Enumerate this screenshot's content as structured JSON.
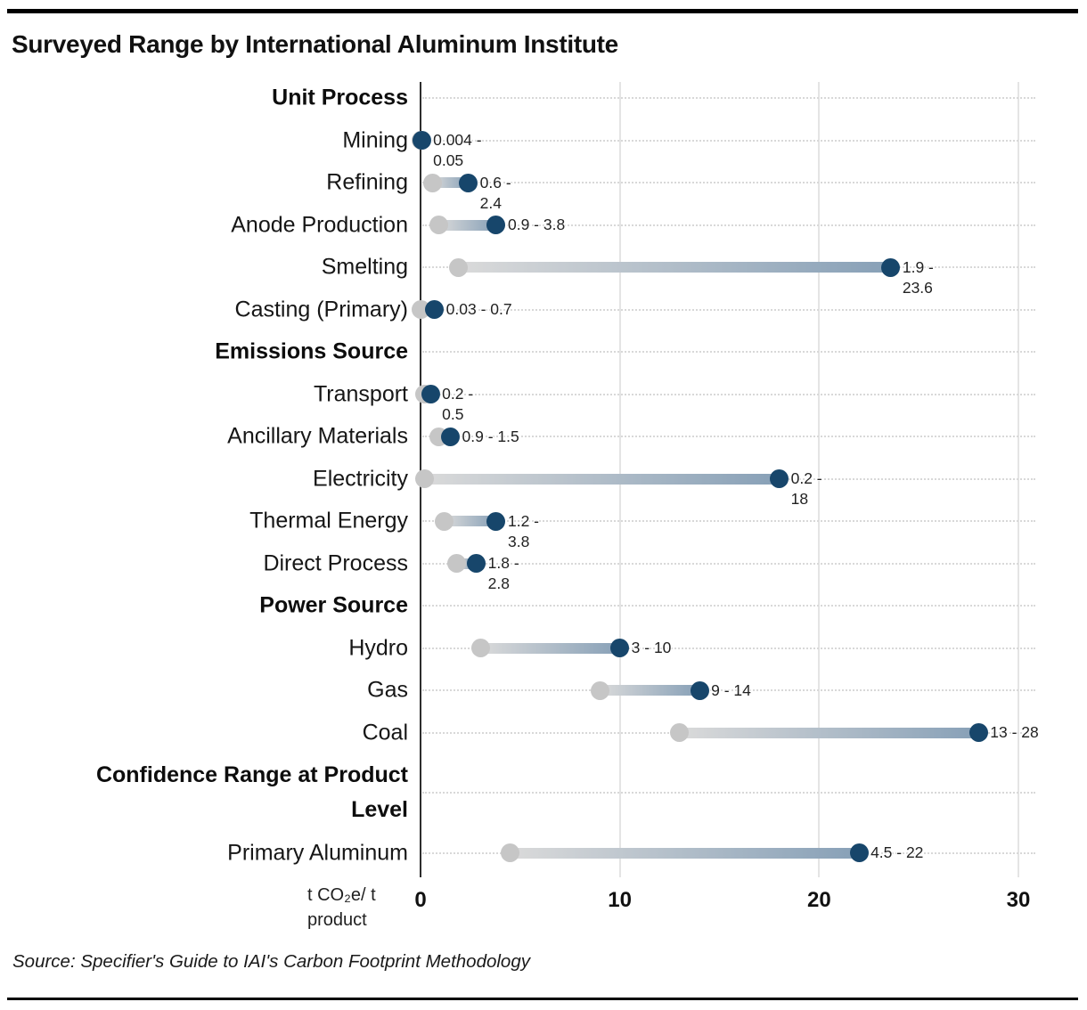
{
  "chart_data": {
    "type": "dumbbell-range",
    "title": "Surveyed Range by International Aluminum Institute",
    "source": "Source: Specifier's Guide to IAI's Carbon Footprint Methodology",
    "unit_label_lines": [
      "t CO₂e/ t",
      "product"
    ],
    "x_axis": {
      "min": 0,
      "max": 30,
      "ticks": [
        0,
        10,
        20,
        30
      ],
      "tick_labels": [
        "0",
        "10",
        "20",
        "30"
      ],
      "grid": "vertical lines at 10/20/30, dotted horizontal line per row"
    },
    "legend": "gray dot = low end of range, navy dot = high end of range",
    "colors": {
      "min_dot": "#c6c6c6",
      "max_dot": "#17466b",
      "bar_start": "#dadada",
      "bar_end": "#87a0b7",
      "axis": "#2d2d2d"
    },
    "groups": [
      {
        "label": "Unit Process",
        "items": [
          {
            "label": "Mining",
            "min": 0.004,
            "max": 0.05,
            "value_label_lines": [
              "0.004 -",
              "0.05"
            ]
          },
          {
            "label": "Refining",
            "min": 0.6,
            "max": 2.4,
            "value_label_lines": [
              "0.6 -",
              "2.4"
            ]
          },
          {
            "label": "Anode Production",
            "min": 0.9,
            "max": 3.8,
            "value_label_lines": [
              "0.9 - 3.8"
            ]
          },
          {
            "label": "Smelting",
            "min": 1.9,
            "max": 23.6,
            "value_label_lines": [
              "1.9 -",
              "23.6"
            ]
          },
          {
            "label": "Casting (Primary)",
            "min": 0.03,
            "max": 0.7,
            "value_label_lines": [
              "0.03 - 0.7"
            ]
          }
        ]
      },
      {
        "label": "Emissions Source",
        "items": [
          {
            "label": "Transport",
            "min": 0.2,
            "max": 0.5,
            "value_label_lines": [
              "0.2 -",
              "0.5"
            ]
          },
          {
            "label": "Ancillary Materials",
            "min": 0.9,
            "max": 1.5,
            "value_label_lines": [
              "0.9 - 1.5"
            ]
          },
          {
            "label": "Electricity",
            "min": 0.2,
            "max": 18,
            "value_label_lines": [
              "0.2 -",
              "18"
            ]
          },
          {
            "label": "Thermal Energy",
            "min": 1.2,
            "max": 3.8,
            "value_label_lines": [
              "1.2 -",
              "3.8"
            ]
          },
          {
            "label": "Direct Process",
            "min": 1.8,
            "max": 2.8,
            "value_label_lines": [
              "1.8 -",
              "2.8"
            ]
          }
        ]
      },
      {
        "label": "Power Source",
        "items": [
          {
            "label": "Hydro",
            "min": 3,
            "max": 10,
            "value_label_lines": [
              "3 - 10"
            ]
          },
          {
            "label": "Gas",
            "min": 9,
            "max": 14,
            "value_label_lines": [
              "9 - 14"
            ]
          },
          {
            "label": "Coal",
            "min": 13,
            "max": 28,
            "value_label_lines": [
              "13 - 28"
            ]
          }
        ]
      },
      {
        "label": "Confidence Range at Product Level",
        "label_lines": [
          "Confidence Range at Product",
          "Level"
        ],
        "items": [
          {
            "label": "Primary Aluminum",
            "min": 4.5,
            "max": 22,
            "value_label_lines": [
              "4.5 - 22"
            ]
          }
        ]
      }
    ]
  }
}
